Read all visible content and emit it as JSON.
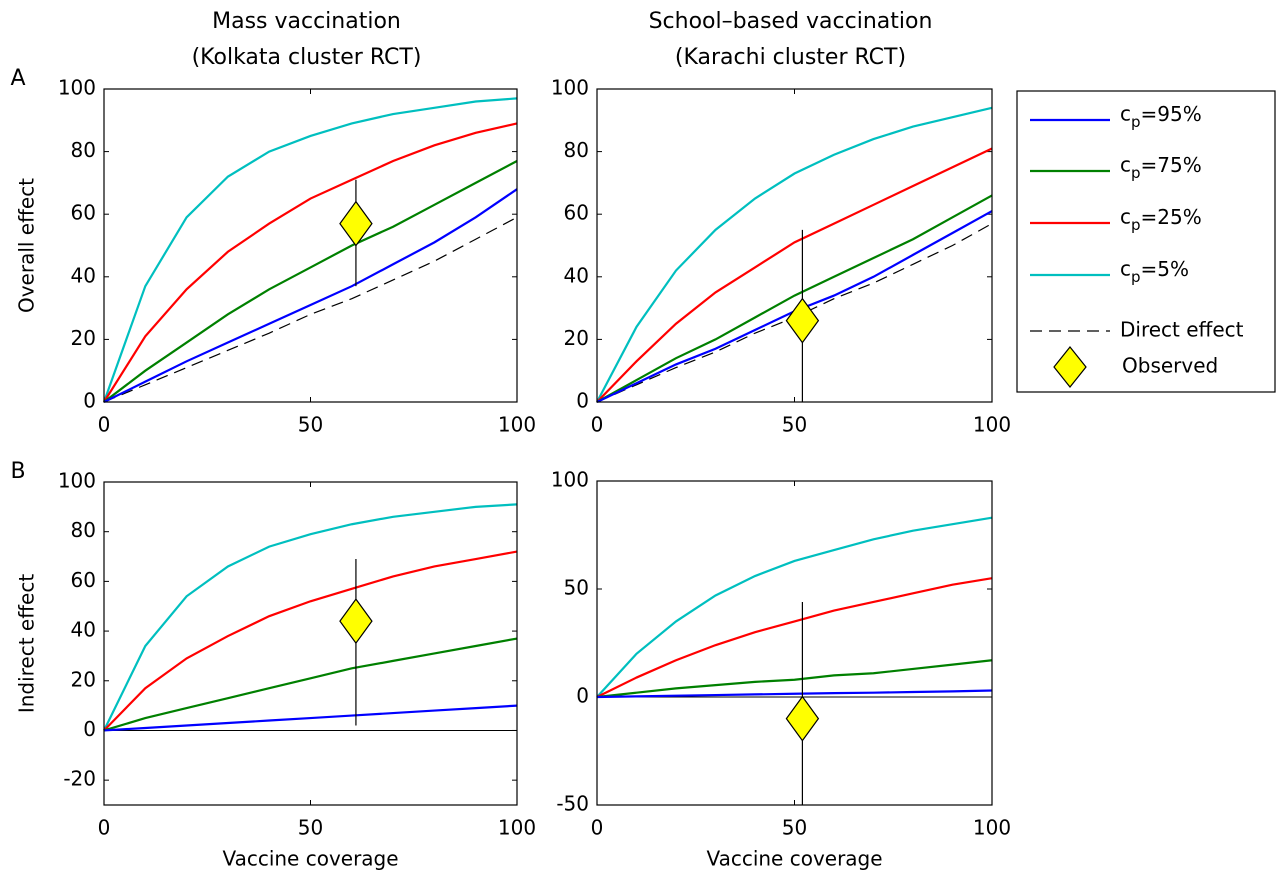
{
  "chart_data": [
    {
      "type": "line",
      "title": [
        "Mass vaccination",
        "(Kolkata cluster RCT)"
      ],
      "panel_label": "A",
      "ylabel": "Overall effect",
      "x": [
        0,
        10,
        20,
        30,
        40,
        50,
        60,
        70,
        80,
        90,
        100
      ],
      "xlim": [
        0,
        100
      ],
      "xticks": [
        0,
        50,
        100
      ],
      "ylim": [
        0,
        100
      ],
      "yticks": [
        0,
        20,
        40,
        60,
        80,
        100
      ],
      "series": [
        {
          "name": "cp=95%",
          "color": "#0000ff",
          "values": [
            0,
            6.5,
            13,
            19,
            25,
            31,
            37,
            44,
            51,
            59,
            68
          ]
        },
        {
          "name": "cp=75%",
          "color": "#008000",
          "values": [
            0,
            10,
            19,
            28,
            36,
            43,
            50,
            56,
            63,
            70,
            77
          ]
        },
        {
          "name": "cp=25%",
          "color": "#ff0000",
          "values": [
            0,
            21,
            36,
            48,
            57,
            65,
            71,
            77,
            82,
            86,
            89
          ]
        },
        {
          "name": "cp=5%",
          "color": "#00bfbf",
          "values": [
            0,
            37,
            59,
            72,
            80,
            85,
            89,
            92,
            94,
            96,
            97
          ]
        },
        {
          "name": "Direct effect",
          "color": "#000000",
          "dashed": true,
          "values": [
            0,
            5.5,
            11,
            16.5,
            22,
            28,
            33,
            39,
            45,
            52,
            59
          ]
        }
      ],
      "observed": {
        "name": "Observed",
        "color": "#ffff00",
        "x": 61,
        "y": 57,
        "low": 37,
        "high": 71
      }
    },
    {
      "type": "line",
      "title": [
        "School–based vaccination",
        "(Karachi cluster RCT)"
      ],
      "x": [
        0,
        10,
        20,
        30,
        40,
        50,
        60,
        70,
        80,
        90,
        100
      ],
      "xlim": [
        0,
        100
      ],
      "xticks": [
        0,
        50,
        100
      ],
      "ylim": [
        0,
        100
      ],
      "yticks": [
        0,
        20,
        40,
        60,
        80,
        100
      ],
      "series": [
        {
          "color": "#0000ff",
          "values": [
            0,
            6,
            12,
            17,
            23,
            29,
            34,
            40,
            47,
            54,
            61
          ]
        },
        {
          "color": "#008000",
          "values": [
            0,
            7,
            14,
            20,
            27,
            34,
            40,
            46,
            52,
            59,
            66
          ]
        },
        {
          "color": "#ff0000",
          "values": [
            0,
            13,
            25,
            35,
            43,
            51,
            57,
            63,
            69,
            75,
            81
          ]
        },
        {
          "color": "#00bfbf",
          "values": [
            0,
            24,
            42,
            55,
            65,
            73,
            79,
            84,
            88,
            91,
            94
          ]
        },
        {
          "color": "#000000",
          "dashed": true,
          "values": [
            0,
            5.5,
            11,
            16,
            22,
            27,
            33,
            38,
            44,
            50,
            57
          ]
        }
      ],
      "observed": {
        "color": "#ffff00",
        "x": 52,
        "y": 26,
        "low": 0,
        "high": 55
      }
    },
    {
      "type": "line",
      "panel_label": "B",
      "ylabel": "Indirect effect",
      "xlabel": "Vaccine coverage",
      "zero_line": true,
      "x": [
        0,
        10,
        20,
        30,
        40,
        50,
        60,
        70,
        80,
        90,
        100
      ],
      "xlim": [
        0,
        100
      ],
      "xticks": [
        0,
        50,
        100
      ],
      "ylim": [
        -30,
        100
      ],
      "yticks": [
        -20,
        0,
        20,
        40,
        60,
        80,
        100
      ],
      "series": [
        {
          "color": "#0000ff",
          "values": [
            0,
            1,
            2,
            3,
            4,
            5,
            6,
            7,
            8,
            9,
            10
          ]
        },
        {
          "color": "#008000",
          "values": [
            0,
            5,
            9,
            13,
            17,
            21,
            25,
            28,
            31,
            34,
            37
          ]
        },
        {
          "color": "#ff0000",
          "values": [
            0,
            17,
            29,
            38,
            46,
            52,
            57,
            62,
            66,
            69,
            72
          ]
        },
        {
          "color": "#00bfbf",
          "values": [
            0,
            34,
            54,
            66,
            74,
            79,
            83,
            86,
            88,
            90,
            91
          ]
        }
      ],
      "observed": {
        "color": "#ffff00",
        "x": 61,
        "y": 44,
        "low": 2,
        "high": 69
      }
    },
    {
      "type": "line",
      "xlabel": "Vaccine coverage",
      "zero_line": true,
      "x": [
        0,
        10,
        20,
        30,
        40,
        50,
        60,
        70,
        80,
        90,
        100
      ],
      "xlim": [
        0,
        100
      ],
      "xticks": [
        0,
        50,
        100
      ],
      "ylim": [
        -50,
        100
      ],
      "yticks": [
        -50,
        0,
        50,
        100
      ],
      "series": [
        {
          "color": "#0000ff",
          "values": [
            0,
            0.3,
            0.6,
            0.9,
            1.2,
            1.5,
            1.8,
            2,
            2.3,
            2.6,
            3
          ]
        },
        {
          "color": "#008000",
          "values": [
            0,
            2,
            4,
            5.5,
            7,
            8,
            10,
            11,
            13,
            15,
            17
          ]
        },
        {
          "color": "#ff0000",
          "values": [
            0,
            9,
            17,
            24,
            30,
            35,
            40,
            44,
            48,
            52,
            55
          ]
        },
        {
          "color": "#00bfbf",
          "values": [
            0,
            20,
            35,
            47,
            56,
            63,
            68,
            73,
            77,
            80,
            83
          ]
        }
      ],
      "observed": {
        "color": "#ffff00",
        "x": 52,
        "y": -10,
        "low": -50,
        "high": 44
      }
    }
  ]
}
